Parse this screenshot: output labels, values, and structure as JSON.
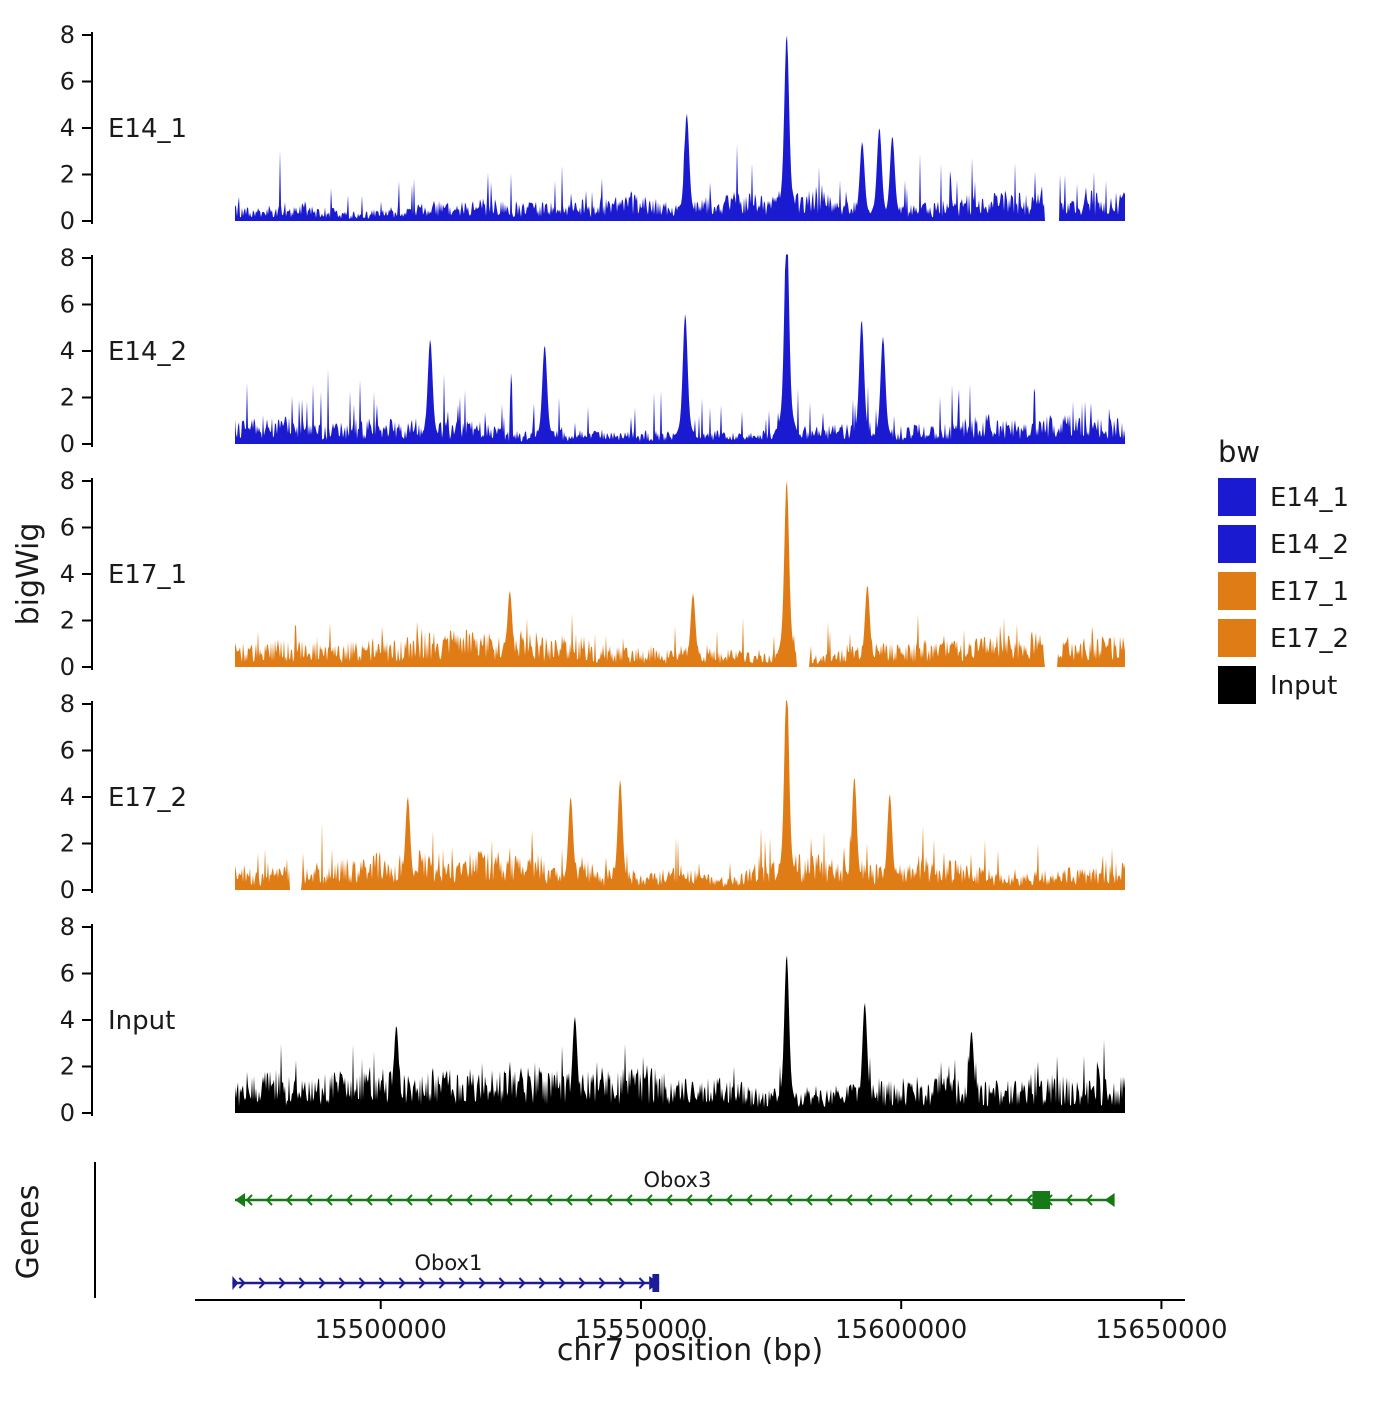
{
  "chart_data": {
    "type": "area",
    "description": "Genome browser bigWig coverage tracks over chr7 with gene annotations",
    "x_axis": {
      "label": "chr7 position (bp)",
      "domain": [
        15472000,
        15643000
      ],
      "ticks": [
        15500000,
        15550000,
        15600000,
        15650000
      ],
      "tick_labels": [
        "15500000",
        "15550000",
        "15600000",
        "15650000"
      ]
    },
    "y_axis": {
      "label": "bigWig",
      "ticks": [
        0,
        2,
        4,
        6,
        8
      ],
      "ylim": [
        0,
        8
      ]
    },
    "tracks": [
      {
        "name": "E14_1",
        "color": "#1a1ad1",
        "noise_seed": 101,
        "baseline_level": 0.75,
        "spike_prob": 0.05,
        "spike_scale": 1.1,
        "peaks": [
          {
            "pos": 15578000,
            "height": 6.6
          },
          {
            "pos": 15558800,
            "height": 3.8
          },
          {
            "pos": 15595800,
            "height": 3.3
          },
          {
            "pos": 15598300,
            "height": 3.0
          },
          {
            "pos": 15592500,
            "height": 2.8
          }
        ],
        "gaps": [
          [
            15627500,
            15630500
          ]
        ]
      },
      {
        "name": "E14_2",
        "color": "#1a1ad1",
        "noise_seed": 202,
        "baseline_level": 0.95,
        "spike_prob": 0.06,
        "spike_scale": 1.3,
        "peaks": [
          {
            "pos": 15578000,
            "height": 7.8
          },
          {
            "pos": 15558500,
            "height": 4.6
          },
          {
            "pos": 15592400,
            "height": 4.4
          },
          {
            "pos": 15596500,
            "height": 3.8
          },
          {
            "pos": 15509500,
            "height": 3.7
          },
          {
            "pos": 15531500,
            "height": 3.5
          }
        ],
        "gaps": []
      },
      {
        "name": "E17_1",
        "color": "#e07c16",
        "noise_seed": 303,
        "baseline_level": 1.0,
        "spike_prob": 0.05,
        "spike_scale": 0.8,
        "peaks": [
          {
            "pos": 15578000,
            "height": 6.6
          },
          {
            "pos": 15524800,
            "height": 2.7
          },
          {
            "pos": 15560000,
            "height": 2.6
          },
          {
            "pos": 15593500,
            "height": 2.9
          }
        ],
        "gaps": [
          [
            15579800,
            15582300
          ],
          [
            15627500,
            15630000
          ]
        ]
      },
      {
        "name": "E17_2",
        "color": "#e07c16",
        "noise_seed": 404,
        "baseline_level": 1.0,
        "spike_prob": 0.05,
        "spike_scale": 1.0,
        "peaks": [
          {
            "pos": 15578000,
            "height": 7.4
          },
          {
            "pos": 15546000,
            "height": 3.9
          },
          {
            "pos": 15591000,
            "height": 4.0
          },
          {
            "pos": 15597800,
            "height": 3.4
          },
          {
            "pos": 15505200,
            "height": 3.3
          },
          {
            "pos": 15536500,
            "height": 3.3
          }
        ],
        "gaps": [
          [
            15482500,
            15484800
          ]
        ]
      },
      {
        "name": "Input",
        "color": "#000000",
        "noise_seed": 505,
        "baseline_level": 1.15,
        "spike_prob": 0.05,
        "spike_scale": 0.9,
        "peaks": [
          {
            "pos": 15578000,
            "height": 5.6
          },
          {
            "pos": 15593000,
            "height": 3.9
          },
          {
            "pos": 15537300,
            "height": 3.4
          },
          {
            "pos": 15503000,
            "height": 3.1
          },
          {
            "pos": 15613500,
            "height": 2.9
          }
        ],
        "gaps": []
      }
    ],
    "genes_panel": {
      "label": "Genes"
    },
    "genes": [
      {
        "name": "Obox3",
        "color": "#157a15",
        "strand": "-",
        "start": 15472000,
        "end": 15641000,
        "exons": [
          [
            15625200,
            15628600
          ]
        ],
        "label_pos": 15557000
      },
      {
        "name": "Obox1",
        "color": "#1c1c96",
        "strand": "+",
        "start": 15471500,
        "end": 15553500,
        "exons": [
          [
            15552200,
            15553500
          ]
        ],
        "label_pos": 15513000
      }
    ],
    "legend": {
      "title": "bw",
      "items": [
        {
          "label": "E14_1",
          "color": "#1a1ad1"
        },
        {
          "label": "E14_2",
          "color": "#1a1ad1"
        },
        {
          "label": "E17_1",
          "color": "#e07c16"
        },
        {
          "label": "E17_2",
          "color": "#e07c16"
        },
        {
          "label": "Input",
          "color": "#000000"
        }
      ]
    }
  }
}
